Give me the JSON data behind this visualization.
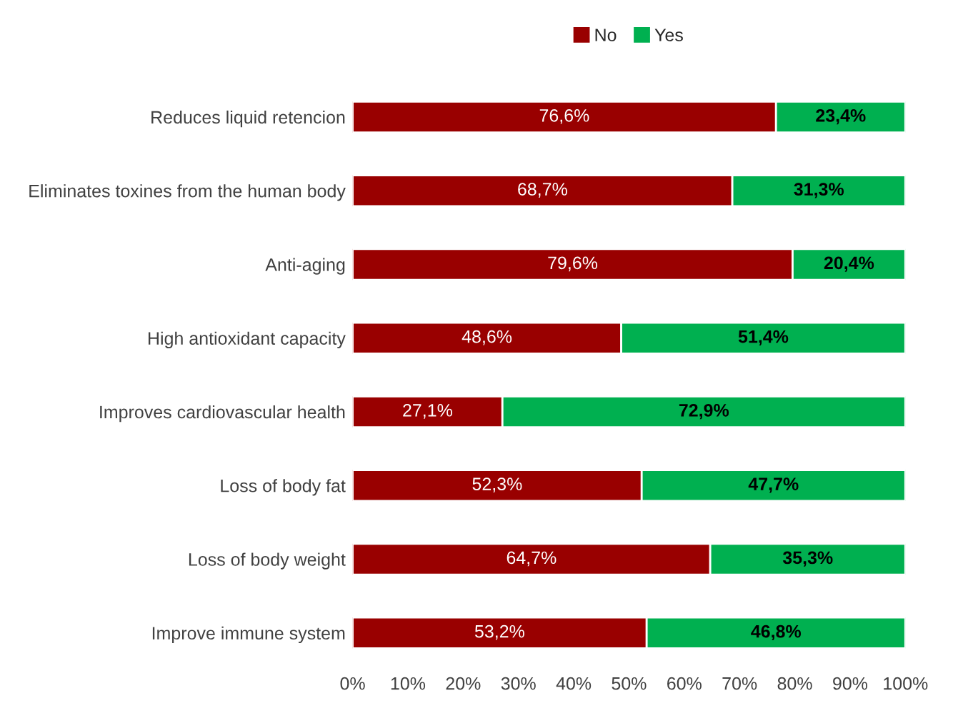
{
  "chart_data": {
    "type": "bar",
    "orientation": "horizontal",
    "stacked": true,
    "categories": [
      "Reduces liquid retencion",
      "Eliminates toxines from the human body",
      "Anti-aging",
      "High antioxidant capacity",
      "Improves cardiovascular health",
      "Loss of body fat",
      "Loss of body weight",
      "Improve immune system"
    ],
    "series": [
      {
        "name": "No",
        "color": "#990000",
        "values": [
          76.6,
          68.7,
          79.6,
          48.6,
          27.1,
          52.3,
          64.7,
          53.2
        ],
        "value_labels": [
          "76,6%",
          "68,7%",
          "79,6%",
          "48,6%",
          "27,1%",
          "52,3%",
          "64,7%",
          "53,2%"
        ]
      },
      {
        "name": "Yes",
        "color": "#00b050",
        "values": [
          23.4,
          31.3,
          20.4,
          51.4,
          72.9,
          47.7,
          35.3,
          46.8
        ],
        "value_labels": [
          "23,4%",
          "31,3%",
          "20,4%",
          "51,4%",
          "72,9%",
          "47,7%",
          "35,3%",
          "46,8%"
        ]
      }
    ],
    "xlim": [
      0,
      100
    ],
    "xticks": [
      {
        "value": 0,
        "label": "0%"
      },
      {
        "value": 10,
        "label": "10%"
      },
      {
        "value": 20,
        "label": "20%"
      },
      {
        "value": 30,
        "label": "30%"
      },
      {
        "value": 40,
        "label": "40%"
      },
      {
        "value": 50,
        "label": "50%"
      },
      {
        "value": 60,
        "label": "60%"
      },
      {
        "value": 70,
        "label": "70%"
      },
      {
        "value": 80,
        "label": "80%"
      },
      {
        "value": 90,
        "label": "90%"
      },
      {
        "value": 100,
        "label": "100%"
      }
    ],
    "grid": false,
    "legend": "top"
  }
}
